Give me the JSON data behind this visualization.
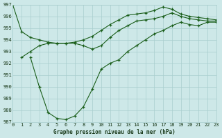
{
  "title": "Graphe pression niveau de la mer (hPa)",
  "bg_color": "#cde8e8",
  "grid_color": "#a8cece",
  "line_color": "#1a5e1a",
  "marker": "+",
  "xmin": 0,
  "xmax": 23,
  "ymin": 987,
  "ymax": 997,
  "yticks": [
    987,
    988,
    989,
    990,
    991,
    992,
    993,
    994,
    995,
    996,
    997
  ],
  "xticks": [
    0,
    1,
    2,
    3,
    4,
    5,
    6,
    7,
    8,
    9,
    10,
    11,
    12,
    13,
    14,
    15,
    16,
    17,
    18,
    19,
    20,
    21,
    22,
    23
  ],
  "series": [
    {
      "x": [
        0,
        1,
        2,
        3,
        4,
        5,
        6,
        7,
        8,
        9,
        10,
        11,
        12,
        13,
        14,
        15,
        16,
        17,
        18,
        19,
        20,
        21,
        22,
        23
      ],
      "y": [
        997.0,
        994.7,
        994.2,
        994.0,
        993.8,
        993.7,
        993.7,
        993.8,
        994.0,
        994.3,
        994.8,
        995.3,
        995.7,
        996.1,
        996.2,
        996.3,
        996.5,
        996.8,
        996.6,
        996.2,
        996.0,
        995.9,
        995.8,
        995.7
      ]
    },
    {
      "x": [
        1,
        2,
        3,
        4,
        5,
        6,
        7,
        8,
        9,
        10,
        11,
        12,
        13,
        14,
        15,
        16,
        17,
        18,
        19,
        20,
        21,
        22,
        23
      ],
      "y": [
        992.5,
        993.0,
        993.5,
        993.7,
        993.7,
        993.7,
        993.7,
        993.5,
        993.2,
        993.5,
        994.2,
        994.8,
        995.2,
        995.6,
        995.7,
        995.8,
        996.0,
        996.3,
        996.0,
        995.8,
        995.7,
        995.6,
        995.6
      ]
    },
    {
      "x": [
        2,
        3,
        4,
        5,
        6,
        7,
        8,
        9,
        10,
        11,
        12,
        13,
        14,
        15,
        16,
        17,
        18,
        19,
        20,
        21,
        22,
        23
      ],
      "y": [
        992.5,
        990.0,
        987.8,
        987.3,
        987.2,
        987.5,
        988.3,
        989.8,
        991.5,
        992.0,
        992.3,
        993.0,
        993.5,
        994.0,
        994.5,
        994.8,
        995.2,
        995.5,
        995.3,
        995.2,
        995.5,
        995.5
      ]
    }
  ]
}
